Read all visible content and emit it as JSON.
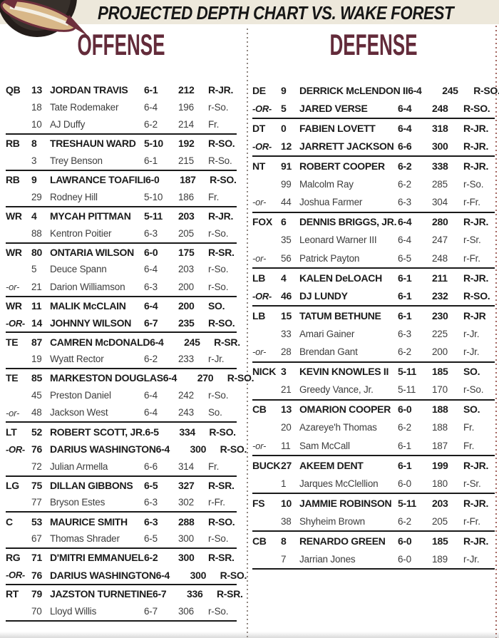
{
  "header": {
    "title": "PROJECTED DEPTH CHART VS. WAKE FOREST",
    "logo_icon": "seminoles-logo"
  },
  "colors": {
    "garnet_heading": "#632B3A",
    "cream_band": "#EDE8DB",
    "bold_text": "#1C1C1C",
    "regular_text": "#3D3D3D",
    "rule_line": "#1A1A1A",
    "divider_dots_gray": "#8F8680",
    "divider_dots_garnet": "#A3655F",
    "logo_gold": "#D8B788",
    "logo_garnet": "#6E2F3C",
    "logo_black": "#241D1A"
  },
  "offense": {
    "heading": "OFFENSE",
    "groups": [
      {
        "rows": [
          {
            "pos": "QB",
            "num": "13",
            "name": "JORDAN TRAVIS",
            "ht": "6-1",
            "wt": "212",
            "cls": "R-JR.",
            "bold": true
          },
          {
            "pos": "",
            "num": "18",
            "name": "Tate Rodemaker",
            "ht": "6-4",
            "wt": "196",
            "cls": "r-So.",
            "bold": false
          },
          {
            "pos": "",
            "num": "10",
            "name": "AJ Duffy",
            "ht": "6-2",
            "wt": "214",
            "cls": "Fr.",
            "bold": false
          }
        ]
      },
      {
        "rows": [
          {
            "pos": "RB",
            "num": "8",
            "name": "TRESHAUN WARD",
            "ht": "5-10",
            "wt": "192",
            "cls": "R-SO.",
            "bold": true
          },
          {
            "pos": "",
            "num": "3",
            "name": "Trey Benson",
            "ht": "6-1",
            "wt": "215",
            "cls": "R-So.",
            "bold": false
          }
        ]
      },
      {
        "rows": [
          {
            "pos": "RB",
            "num": "9",
            "name": "LAWRANCE TOAFILI",
            "ht": "6-0",
            "wt": "187",
            "cls": "R-SO.",
            "bold": true
          },
          {
            "pos": "",
            "num": "29",
            "name": "Rodney Hill",
            "ht": "5-10",
            "wt": "186",
            "cls": "Fr.",
            "bold": false
          }
        ]
      },
      {
        "rows": [
          {
            "pos": "WR",
            "num": "4",
            "name": "MYCAH PITTMAN",
            "ht": "5-11",
            "wt": "203",
            "cls": "R-JR.",
            "bold": true
          },
          {
            "pos": "",
            "num": "88",
            "name": "Kentron Poitier",
            "ht": "6-3",
            "wt": "205",
            "cls": "r-So.",
            "bold": false
          }
        ]
      },
      {
        "rows": [
          {
            "pos": "WR",
            "num": "80",
            "name": "ONTARIA WILSON",
            "ht": "6-0",
            "wt": "175",
            "cls": "R-SR.",
            "bold": true
          },
          {
            "pos": "",
            "num": "5",
            "name": "Deuce Spann",
            "ht": "6-4",
            "wt": "203",
            "cls": "r-So.",
            "bold": false
          },
          {
            "pos": "-or-",
            "or": true,
            "num": "21",
            "name": "Darion Williamson",
            "ht": "6-3",
            "wt": "200",
            "cls": "r-So.",
            "bold": false
          }
        ]
      },
      {
        "rows": [
          {
            "pos": "WR",
            "num": "11",
            "name": "MALIK McCLAIN",
            "ht": "6-4",
            "wt": "200",
            "cls": "SO.",
            "bold": true
          },
          {
            "pos": "-OR-",
            "or": true,
            "num": "14",
            "name": "JOHNNY WILSON",
            "ht": "6-7",
            "wt": "235",
            "cls": "R-SO.",
            "bold": true
          }
        ]
      },
      {
        "rows": [
          {
            "pos": "TE",
            "num": "87",
            "name": "CAMREN McDONALD",
            "ht": "6-4",
            "wt": "245",
            "cls": "R-SR.",
            "bold": true
          },
          {
            "pos": "",
            "num": "19",
            "name": "Wyatt Rector",
            "ht": "6-2",
            "wt": "233",
            "cls": "r-Jr.",
            "bold": false
          }
        ]
      },
      {
        "rows": [
          {
            "pos": "TE",
            "num": "85",
            "name": "MARKESTON DOUGLAS",
            "ht": "6-4",
            "wt": "270",
            "cls": "R-SO.",
            "bold": true
          },
          {
            "pos": "",
            "num": "45",
            "name": "Preston Daniel",
            "ht": "6-4",
            "wt": "242",
            "cls": "r-So.",
            "bold": false
          },
          {
            "pos": "-or-",
            "or": true,
            "num": "48",
            "name": "Jackson West",
            "ht": "6-4",
            "wt": "243",
            "cls": "So.",
            "bold": false
          }
        ]
      },
      {
        "rows": [
          {
            "pos": "LT",
            "num": "52",
            "name": "ROBERT SCOTT, JR.",
            "ht": "6-5",
            "wt": "334",
            "cls": "R-SO.",
            "bold": true
          },
          {
            "pos": "-OR-",
            "or": true,
            "num": "76",
            "name": "DARIUS WASHINGTON",
            "ht": "6-4",
            "wt": "300",
            "cls": "R-SO.",
            "bold": true
          },
          {
            "pos": "",
            "num": "72",
            "name": "Julian Armella",
            "ht": "6-6",
            "wt": "314",
            "cls": "Fr.",
            "bold": false
          }
        ]
      },
      {
        "rows": [
          {
            "pos": "LG",
            "num": "75",
            "name": "DILLAN GIBBONS",
            "ht": "6-5",
            "wt": "327",
            "cls": "R-SR.",
            "bold": true
          },
          {
            "pos": "",
            "num": "77",
            "name": "Bryson Estes",
            "ht": "6-3",
            "wt": "302",
            "cls": "r-Fr.",
            "bold": false
          }
        ]
      },
      {
        "rows": [
          {
            "pos": "C",
            "num": "53",
            "name": "MAURICE SMITH",
            "ht": "6-3",
            "wt": "288",
            "cls": "R-SO.",
            "bold": true
          },
          {
            "pos": "",
            "num": "67",
            "name": "Thomas Shrader",
            "ht": "6-5",
            "wt": "300",
            "cls": "r-So.",
            "bold": false
          }
        ]
      },
      {
        "rows": [
          {
            "pos": "RG",
            "num": "71",
            "name": "D'MITRI EMMANUEL",
            "ht": "6-2",
            "wt": "300",
            "cls": "R-SR.",
            "bold": true
          },
          {
            "pos": "-OR-",
            "or": true,
            "num": "76",
            "name": "DARIUS WASHINGTON",
            "ht": "6-4",
            "wt": "300",
            "cls": "R-SO.",
            "bold": true
          }
        ]
      },
      {
        "rows": [
          {
            "pos": "RT",
            "num": "79",
            "name": "JAZSTON TURNETINE",
            "ht": "6-7",
            "wt": "336",
            "cls": "R-SR.",
            "bold": true
          },
          {
            "pos": "",
            "num": "70",
            "name": "Lloyd Willis",
            "ht": "6-7",
            "wt": "306",
            "cls": "r-So.",
            "bold": false
          }
        ]
      }
    ]
  },
  "defense": {
    "heading": "DEFENSE",
    "groups": [
      {
        "rows": [
          {
            "pos": "DE",
            "num": "9",
            "name": "DERRICK McLENDON II",
            "ht": "6-4",
            "wt": "245",
            "cls": "R-SO.",
            "bold": true
          },
          {
            "pos": "-OR-",
            "or": true,
            "num": "5",
            "name": "JARED VERSE",
            "ht": "6-4",
            "wt": "248",
            "cls": "R-SO.",
            "bold": true
          }
        ]
      },
      {
        "rows": [
          {
            "pos": "DT",
            "num": "0",
            "name": "FABIEN LOVETT",
            "ht": "6-4",
            "wt": "318",
            "cls": "R-JR.",
            "bold": true
          },
          {
            "pos": "-OR-",
            "or": true,
            "num": "12",
            "name": "JARRETT JACKSON",
            "ht": "6-6",
            "wt": "300",
            "cls": "R-JR.",
            "bold": true
          }
        ]
      },
      {
        "rows": [
          {
            "pos": "NT",
            "num": "91",
            "name": "ROBERT COOPER",
            "ht": "6-2",
            "wt": "338",
            "cls": "R-JR.",
            "bold": true
          },
          {
            "pos": "",
            "num": "99",
            "name": "Malcolm Ray",
            "ht": "6-2",
            "wt": "285",
            "cls": "r-So.",
            "bold": false
          },
          {
            "pos": "-or-",
            "or": true,
            "num": "44",
            "name": "Joshua Farmer",
            "ht": "6-3",
            "wt": "304",
            "cls": "r-Fr.",
            "bold": false
          }
        ]
      },
      {
        "rows": [
          {
            "pos": "FOX",
            "num": "6",
            "name": "DENNIS BRIGGS, JR.",
            "ht": "6-4",
            "wt": "280",
            "cls": "R-JR.",
            "bold": true
          },
          {
            "pos": "",
            "num": "35",
            "name": "Leonard Warner III",
            "ht": "6-4",
            "wt": "247",
            "cls": "r-Sr.",
            "bold": false
          },
          {
            "pos": "-or-",
            "or": true,
            "num": "56",
            "name": "Patrick Payton",
            "ht": "6-5",
            "wt": "248",
            "cls": "r-Fr.",
            "bold": false
          }
        ]
      },
      {
        "rows": [
          {
            "pos": "LB",
            "num": "4",
            "name": "KALEN DeLOACH",
            "ht": "6-1",
            "wt": "211",
            "cls": "R-JR.",
            "bold": true
          },
          {
            "pos": "-OR-",
            "or": true,
            "num": "46",
            "name": "DJ LUNDY",
            "ht": "6-1",
            "wt": "232",
            "cls": "R-SO.",
            "bold": true
          }
        ]
      },
      {
        "rows": [
          {
            "pos": "LB",
            "num": "15",
            "name": "TATUM BETHUNE",
            "ht": "6-1",
            "wt": "230",
            "cls": "R-JR",
            "bold": true
          },
          {
            "pos": "",
            "num": "33",
            "name": "Amari Gainer",
            "ht": "6-3",
            "wt": "225",
            "cls": "r-Jr.",
            "bold": false
          },
          {
            "pos": "-or-",
            "or": true,
            "num": "28",
            "name": "Brendan Gant",
            "ht": "6-2",
            "wt": "200",
            "cls": "r-Jr.",
            "bold": false
          }
        ]
      },
      {
        "rows": [
          {
            "pos": "NICK",
            "num": "3",
            "name": "KEVIN KNOWLES II",
            "ht": "5-11",
            "wt": "185",
            "cls": "SO.",
            "bold": true
          },
          {
            "pos": "",
            "num": "21",
            "name": "Greedy Vance, Jr.",
            "ht": "5-11",
            "wt": "170",
            "cls": "r-So.",
            "bold": false
          }
        ]
      },
      {
        "rows": [
          {
            "pos": "CB",
            "num": "13",
            "name": "OMARION COOPER",
            "ht": "6-0",
            "wt": "188",
            "cls": "SO.",
            "bold": true
          },
          {
            "pos": "",
            "num": "20",
            "name": "Azareye'h Thomas",
            "ht": "6-2",
            "wt": "188",
            "cls": "Fr.",
            "bold": false
          },
          {
            "pos": "-or-",
            "or": true,
            "num": "11",
            "name": "Sam McCall",
            "ht": "6-1",
            "wt": "187",
            "cls": "Fr.",
            "bold": false
          }
        ]
      },
      {
        "rows": [
          {
            "pos": "BUCK",
            "num": "27",
            "name": "AKEEM DENT",
            "ht": "6-1",
            "wt": "199",
            "cls": "R-JR.",
            "bold": true
          },
          {
            "pos": "",
            "num": "1",
            "name": "Jarques McClellion",
            "ht": "6-0",
            "wt": "180",
            "cls": "r-Sr.",
            "bold": false
          }
        ]
      },
      {
        "rows": [
          {
            "pos": "FS",
            "num": "10",
            "name": "JAMMIE ROBINSON",
            "ht": "5-11",
            "wt": "203",
            "cls": "R-JR.",
            "bold": true
          },
          {
            "pos": "",
            "num": "38",
            "name": "Shyheim Brown",
            "ht": "6-2",
            "wt": "205",
            "cls": "r-Fr.",
            "bold": false
          }
        ]
      },
      {
        "rows": [
          {
            "pos": "CB",
            "num": "8",
            "name": "RENARDO GREEN",
            "ht": "6-0",
            "wt": "185",
            "cls": "R-JR.",
            "bold": true
          },
          {
            "pos": "",
            "num": "7",
            "name": "Jarrian Jones",
            "ht": "6-0",
            "wt": "189",
            "cls": "r-Jr.",
            "bold": false
          }
        ]
      }
    ]
  }
}
